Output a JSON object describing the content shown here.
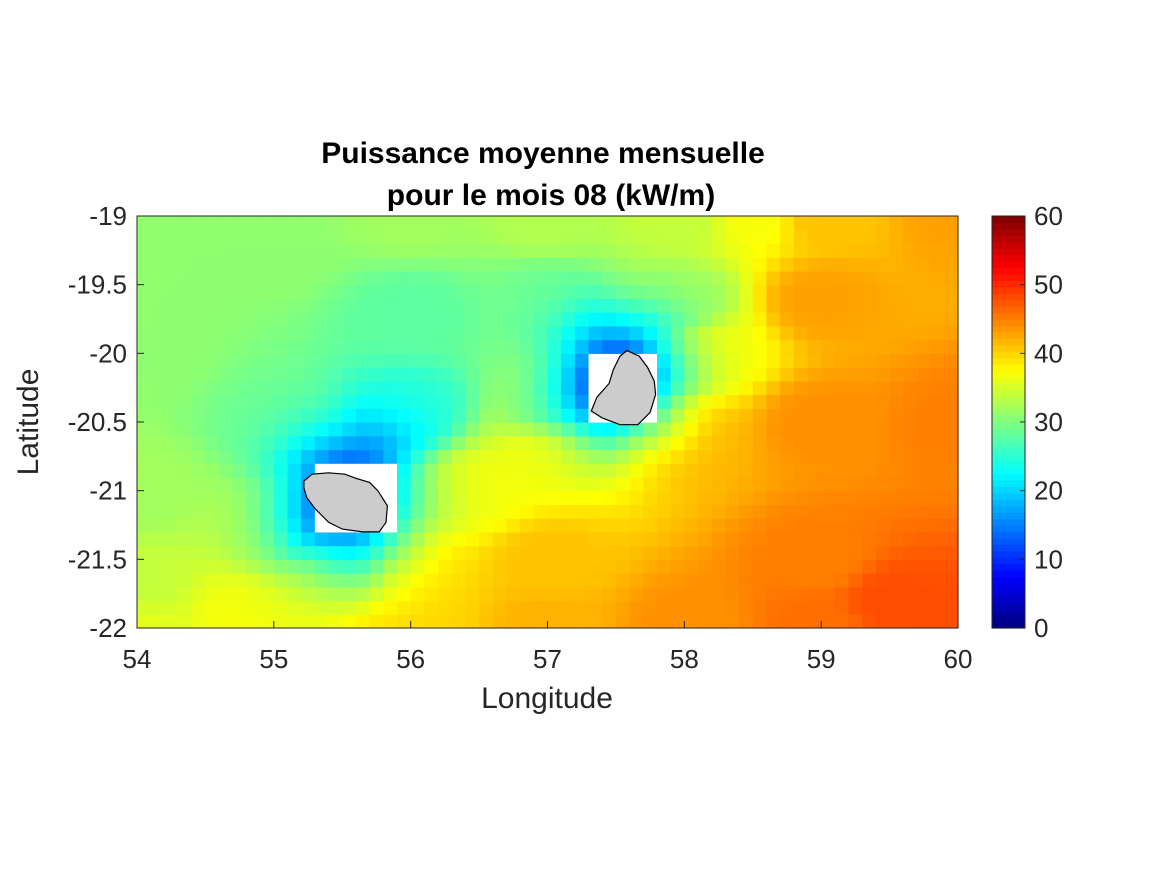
{
  "chart_data": {
    "type": "heatmap",
    "title": [
      "Puissance moyenne mensuelle",
      "pour le mois 08 (kW/m)"
    ],
    "xlabel": "Longitude",
    "ylabel": "Latitude",
    "xlim": [
      54,
      60
    ],
    "ylim": [
      -22,
      -19
    ],
    "xticks": [
      "54",
      "55",
      "56",
      "57",
      "58",
      "59",
      "60"
    ],
    "yticks": [
      "-19",
      "-19.5",
      "-20",
      "-20.5",
      "-21",
      "-21.5",
      "-22"
    ],
    "colorbar": {
      "colormap": "jet",
      "range": [
        0,
        60
      ],
      "ticks": [
        "0",
        "10",
        "20",
        "30",
        "40",
        "50",
        "60"
      ]
    },
    "grid_step_deg": 0.1,
    "field_anchors": [
      {
        "lon": 54.0,
        "lat": -19.0,
        "value": 31
      },
      {
        "lon": 54.0,
        "lat": -20.0,
        "value": 31
      },
      {
        "lon": 54.0,
        "lat": -21.0,
        "value": 32
      },
      {
        "lon": 54.0,
        "lat": -21.7,
        "value": 34
      },
      {
        "lon": 54.0,
        "lat": -22.0,
        "value": 36
      },
      {
        "lon": 54.8,
        "lat": -21.9,
        "value": 37
      },
      {
        "lon": 55.0,
        "lat": -19.2,
        "value": 31
      },
      {
        "lon": 55.0,
        "lat": -20.5,
        "value": 29
      },
      {
        "lon": 55.0,
        "lat": -21.3,
        "value": 33
      },
      {
        "lon": 55.5,
        "lat": -21.6,
        "value": 37
      },
      {
        "lon": 56.0,
        "lat": -19.0,
        "value": 32
      },
      {
        "lon": 56.0,
        "lat": -19.7,
        "value": 28
      },
      {
        "lon": 56.0,
        "lat": -20.4,
        "value": 25
      },
      {
        "lon": 56.0,
        "lat": -21.6,
        "value": 40
      },
      {
        "lon": 56.0,
        "lat": -22.0,
        "value": 40
      },
      {
        "lon": 56.5,
        "lat": -21.0,
        "value": 37
      },
      {
        "lon": 57.0,
        "lat": -19.0,
        "value": 33
      },
      {
        "lon": 57.0,
        "lat": -19.6,
        "value": 29
      },
      {
        "lon": 57.0,
        "lat": -20.4,
        "value": 31
      },
      {
        "lon": 57.0,
        "lat": -20.7,
        "value": 37
      },
      {
        "lon": 57.0,
        "lat": -21.5,
        "value": 41
      },
      {
        "lon": 57.0,
        "lat": -22.0,
        "value": 42
      },
      {
        "lon": 58.0,
        "lat": -19.0,
        "value": 34
      },
      {
        "lon": 58.0,
        "lat": -19.6,
        "value": 32
      },
      {
        "lon": 58.2,
        "lat": -20.0,
        "value": 37
      },
      {
        "lon": 58.0,
        "lat": -20.6,
        "value": 42
      },
      {
        "lon": 58.0,
        "lat": -22.0,
        "value": 44
      },
      {
        "lon": 58.5,
        "lat": -19.0,
        "value": 37
      },
      {
        "lon": 59.0,
        "lat": -19.0,
        "value": 41
      },
      {
        "lon": 59.0,
        "lat": -19.6,
        "value": 43
      },
      {
        "lon": 59.0,
        "lat": -20.5,
        "value": 44
      },
      {
        "lon": 59.0,
        "lat": -21.5,
        "value": 45
      },
      {
        "lon": 59.0,
        "lat": -22.0,
        "value": 46
      },
      {
        "lon": 59.5,
        "lat": -21.8,
        "value": 48
      },
      {
        "lon": 60.0,
        "lat": -19.0,
        "value": 43
      },
      {
        "lon": 60.0,
        "lat": -20.5,
        "value": 45
      },
      {
        "lon": 60.0,
        "lat": -22.0,
        "value": 48
      }
    ],
    "island_sheltering": [
      {
        "name": "Réunion",
        "lon": 55.55,
        "lat": -21.1,
        "strength": 24,
        "radius_deg": 0.5
      },
      {
        "name": "Maurice",
        "lon": 57.55,
        "lat": -20.2,
        "strength": 26,
        "radius_deg": 0.45
      }
    ],
    "missing_value_cells": [
      {
        "lon0": 55.3,
        "lon1": 55.9,
        "lat0": -21.3,
        "lat1": -20.8
      },
      {
        "lon0": 57.3,
        "lon1": 57.8,
        "lat0": -20.5,
        "lat1": -20.0
      }
    ],
    "land_polygons": [
      {
        "name": "Réunion",
        "fill": "#cccccc",
        "lonlat": [
          [
            55.22,
            -20.93
          ],
          [
            55.28,
            -20.88
          ],
          [
            55.4,
            -20.87
          ],
          [
            55.52,
            -20.88
          ],
          [
            55.6,
            -20.91
          ],
          [
            55.7,
            -20.94
          ],
          [
            55.76,
            -21.0
          ],
          [
            55.83,
            -21.11
          ],
          [
            55.82,
            -21.23
          ],
          [
            55.77,
            -21.3
          ],
          [
            55.65,
            -21.3
          ],
          [
            55.5,
            -21.28
          ],
          [
            55.4,
            -21.23
          ],
          [
            55.3,
            -21.13
          ],
          [
            55.24,
            -21.05
          ],
          [
            55.22,
            -20.98
          ]
        ]
      },
      {
        "name": "Maurice",
        "fill": "#cccccc",
        "lonlat": [
          [
            57.58,
            -19.98
          ],
          [
            57.67,
            -20.02
          ],
          [
            57.73,
            -20.1
          ],
          [
            57.78,
            -20.2
          ],
          [
            57.79,
            -20.3
          ],
          [
            57.75,
            -20.43
          ],
          [
            57.66,
            -20.52
          ],
          [
            57.53,
            -20.52
          ],
          [
            57.4,
            -20.47
          ],
          [
            57.32,
            -20.42
          ],
          [
            57.36,
            -20.32
          ],
          [
            57.45,
            -20.22
          ],
          [
            57.48,
            -20.12
          ],
          [
            57.53,
            -20.02
          ]
        ]
      }
    ]
  }
}
